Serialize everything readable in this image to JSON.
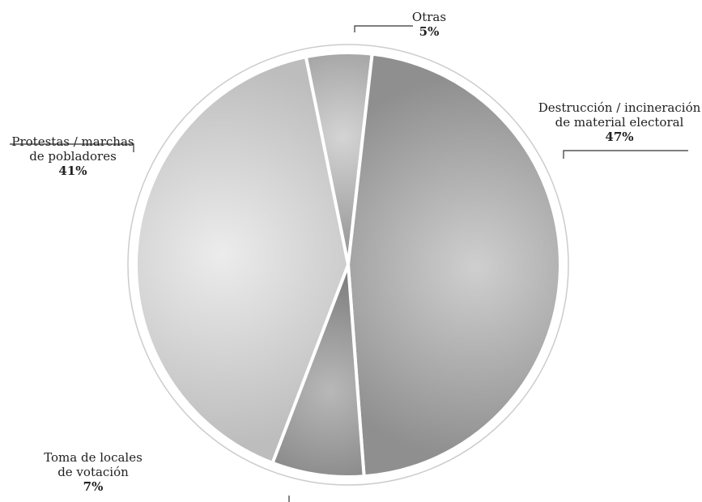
{
  "chart_data": {
    "type": "pie",
    "title": "",
    "slices": [
      {
        "label_lines": [
          "Otras"
        ],
        "value_label": "5%",
        "value": 5,
        "color": "#6f6f6f",
        "highlight": "#d4d4d4"
      },
      {
        "label_lines": [
          "Destrucción / incineración",
          "de material electoral"
        ],
        "value_label": "47%",
        "value": 47,
        "color": "#8f8f8f",
        "highlight": "#cfcfcf"
      },
      {
        "label_lines": [
          "Toma de locales",
          "de votación"
        ],
        "value_label": "7%",
        "value": 7,
        "color": "#5a5a5a",
        "highlight": "#b8b8b8"
      },
      {
        "label_lines": [
          "Protestas / marchas",
          "de pobladores"
        ],
        "value_label": "41%",
        "value": 41,
        "color": "#bdbdbd",
        "highlight": "#ececec"
      }
    ],
    "start_angle_deg": -11.5,
    "direction": "clockwise",
    "legend": "none"
  }
}
